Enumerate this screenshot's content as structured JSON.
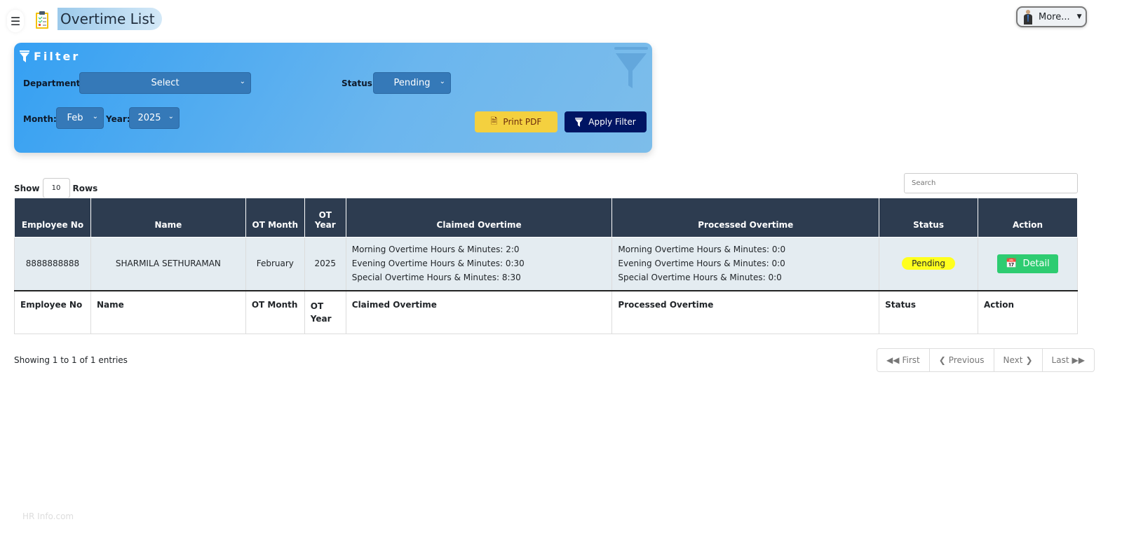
{
  "header": {
    "title": "Overtime List",
    "menu_icon": "hamburger-icon",
    "more_label": "More..."
  },
  "filter": {
    "title": "Filter",
    "department_label": "Department:",
    "department_value": "Select",
    "status_label": "Status:",
    "status_value": "Pending",
    "month_label": "Month:",
    "month_value": "Feb",
    "year_label": "Year:",
    "year_value": "2025",
    "print_label": "Print PDF",
    "apply_label": "Apply Filter"
  },
  "table_controls": {
    "show_label": "Show",
    "rows_value": "10",
    "rows_label": "Rows",
    "search_placeholder": "Search"
  },
  "table": {
    "columns": [
      "Employee No",
      "Name",
      "OT Month",
      "OT Year",
      "Claimed Overtime",
      "Processed Overtime",
      "Status",
      "Action"
    ],
    "rows": [
      {
        "employee_no": "8888888888",
        "name": "SHARMILA SETHURAMAN",
        "ot_month": "February",
        "ot_year": "2025",
        "claimed": [
          "Morning Overtime Hours & Minutes: 2:0",
          "Evening Overtime Hours & Minutes: 0:30",
          "Special Overtime Hours & Minutes: 8:30"
        ],
        "processed": [
          "Morning Overtime Hours & Minutes: 0:0",
          "Evening Overtime Hours & Minutes: 0:0",
          "Special Overtime Hours & Minutes: 0:0"
        ],
        "status": "Pending",
        "action": "Detail"
      }
    ]
  },
  "pagination": {
    "info": "Showing 1 to 1 of 1 entries",
    "first": "First",
    "previous": "Previous",
    "next": "Next",
    "last": "Last"
  },
  "footer": {
    "text": "HR Info.com"
  },
  "colors": {
    "filter_bg": "#35a0f3",
    "apply_btn": "#001563",
    "print_btn": "#f4d03f",
    "header_bg": "#2d3c50",
    "pending_badge": "#ffff1e",
    "detail_btn": "#2ecc71"
  }
}
